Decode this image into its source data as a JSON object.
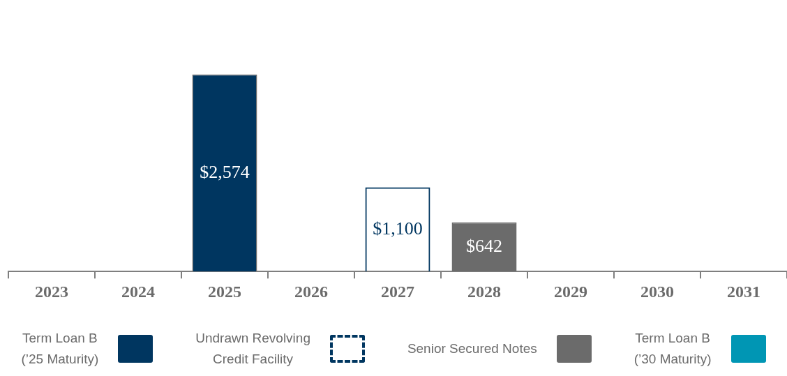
{
  "chart_data": {
    "type": "bar",
    "stacked": true,
    "categories": [
      "2023",
      "2024",
      "2025",
      "2026",
      "2027",
      "2028",
      "2029",
      "2030",
      "2031"
    ],
    "series": [
      {
        "name": "Term Loan B\n(’25 Maturity)",
        "color": "#003660",
        "values": [
          null,
          null,
          2574,
          null,
          null,
          null,
          null,
          null,
          null
        ],
        "value_labels": [
          null,
          null,
          "$2,574",
          null,
          null,
          null,
          null,
          null,
          null
        ]
      },
      {
        "name": "Undrawn Revolving\nCredit Facility",
        "color": "#003660",
        "line_style": "dashed",
        "values": [
          null,
          null,
          null,
          null,
          1100,
          null,
          null,
          null,
          null
        ],
        "value_labels": [
          null,
          null,
          null,
          null,
          "$1,100",
          null,
          null,
          null,
          null
        ]
      },
      {
        "name": "Senior Secured Notes",
        "color": "#6b6b6b",
        "values": [
          null,
          null,
          null,
          null,
          null,
          642,
          null,
          null,
          null
        ],
        "value_labels": [
          null,
          null,
          null,
          null,
          null,
          "$642",
          null,
          null,
          null
        ]
      },
      {
        "name": "Term Loan B\n(’30 Maturity)",
        "color": "#0096b4",
        "values": [
          null,
          null,
          null,
          null,
          null,
          null,
          null,
          null,
          null
        ]
      }
    ],
    "legend": "bottom",
    "grid": false
  }
}
